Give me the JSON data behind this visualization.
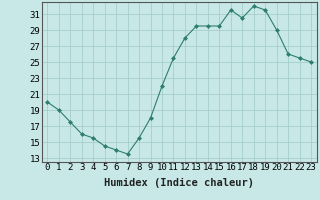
{
  "x": [
    0,
    1,
    2,
    3,
    4,
    5,
    6,
    7,
    8,
    9,
    10,
    11,
    12,
    13,
    14,
    15,
    16,
    17,
    18,
    19,
    20,
    21,
    22,
    23
  ],
  "y": [
    20,
    19,
    17.5,
    16,
    15.5,
    14.5,
    14,
    13.5,
    15.5,
    18,
    22,
    25.5,
    28,
    29.5,
    29.5,
    29.5,
    31.5,
    30.5,
    32,
    31.5,
    29,
    26,
    25.5,
    25
  ],
  "line_color": "#2e7d6e",
  "marker_color": "#2e7d6e",
  "bg_color": "#c8e8e8",
  "grid_color": "#a0c8c8",
  "ylabel_ticks": [
    13,
    15,
    17,
    19,
    21,
    23,
    25,
    27,
    29,
    31
  ],
  "xlabel": "Humidex (Indice chaleur)",
  "xlim": [
    -0.5,
    23.5
  ],
  "ylim": [
    12.5,
    32.5
  ],
  "xlabel_fontsize": 7.5,
  "tick_fontsize": 6.5
}
